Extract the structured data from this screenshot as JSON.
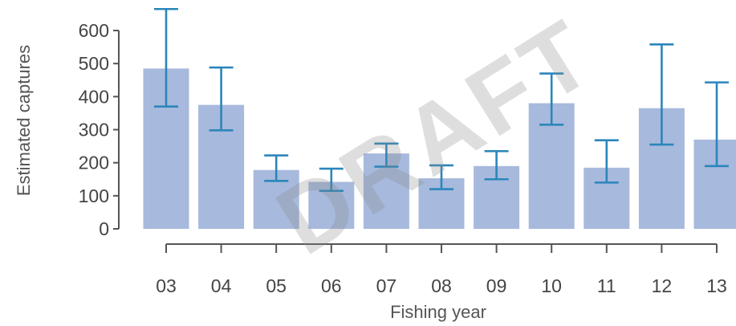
{
  "chart_data": {
    "type": "bar",
    "xlabel": "Fishing year",
    "ylabel": "Estimated captures",
    "categories": [
      "03",
      "04",
      "05",
      "06",
      "07",
      "08",
      "09",
      "10",
      "11",
      "12",
      "13"
    ],
    "values": [
      485,
      375,
      178,
      142,
      228,
      153,
      190,
      380,
      185,
      365,
      270
    ],
    "error_low": [
      370,
      298,
      145,
      115,
      188,
      120,
      150,
      315,
      140,
      255,
      190
    ],
    "error_high": [
      665,
      488,
      222,
      182,
      258,
      192,
      235,
      470,
      268,
      558,
      443
    ],
    "yticks": [
      0,
      100,
      200,
      300,
      400,
      500,
      600
    ],
    "ylim": [
      0,
      665
    ],
    "grid": false,
    "legend": "none",
    "bar_color": "#a7b9dc",
    "error_color": "#2b86bb",
    "axis_color": "#555555",
    "watermark": "DRAFT"
  }
}
